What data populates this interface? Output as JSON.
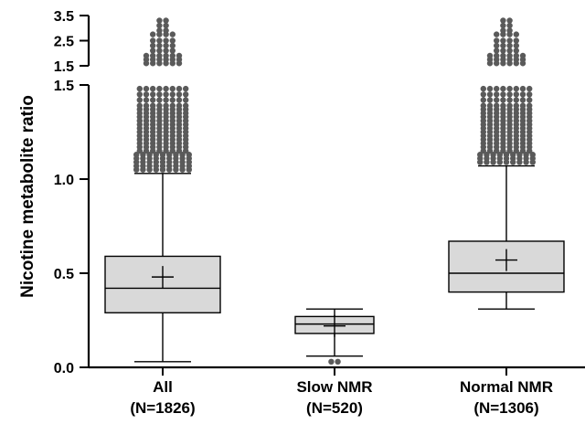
{
  "chart_data": {
    "type": "box",
    "ylabel": "Nicotine metabolite ratio",
    "y_axis_segments": [
      {
        "range": [
          0.0,
          1.5
        ],
        "ticks": [
          "0.0",
          "0.5",
          "1.0",
          "1.5"
        ]
      },
      {
        "range": [
          1.5,
          3.5
        ],
        "ticks": [
          "1.5",
          "2.5",
          "3.5"
        ]
      }
    ],
    "categories": [
      {
        "label": "All",
        "n_label": "(N=1826)",
        "box": {
          "min": 0.03,
          "q1": 0.29,
          "median": 0.42,
          "mean": 0.48,
          "q3": 0.59,
          "max": 1.03
        },
        "outliers": [
          1.05,
          1.07,
          1.09,
          1.11,
          1.13,
          1.15,
          1.17,
          1.19,
          1.21,
          1.23,
          1.25,
          1.27,
          1.29,
          1.31,
          1.33,
          1.35,
          1.37,
          1.39,
          1.42,
          1.45,
          1.48,
          1.6,
          1.75,
          1.9,
          2.1,
          2.3,
          2.5,
          2.75,
          2.9,
          3.1,
          3.3
        ]
      },
      {
        "label": "Slow NMR",
        "n_label": "(N=520)",
        "box": {
          "min": 0.06,
          "q1": 0.18,
          "median": 0.23,
          "mean": 0.22,
          "q3": 0.27,
          "max": 0.31
        },
        "outliers": [
          0.03
        ]
      },
      {
        "label": "Normal NMR",
        "n_label": "(N=1306)",
        "box": {
          "min": 0.31,
          "q1": 0.4,
          "median": 0.5,
          "mean": 0.57,
          "q3": 0.67,
          "max": 1.07
        },
        "outliers": [
          1.09,
          1.11,
          1.13,
          1.15,
          1.17,
          1.19,
          1.21,
          1.23,
          1.25,
          1.27,
          1.29,
          1.31,
          1.33,
          1.35,
          1.37,
          1.39,
          1.42,
          1.45,
          1.48,
          1.6,
          1.75,
          1.9,
          2.1,
          2.3,
          2.5,
          2.75,
          2.9,
          3.1,
          3.3
        ]
      }
    ],
    "colors": {
      "box_fill": "#d9d9d9",
      "outline": "#000000",
      "outlier": "#5a5a5a"
    },
    "grid": false
  }
}
